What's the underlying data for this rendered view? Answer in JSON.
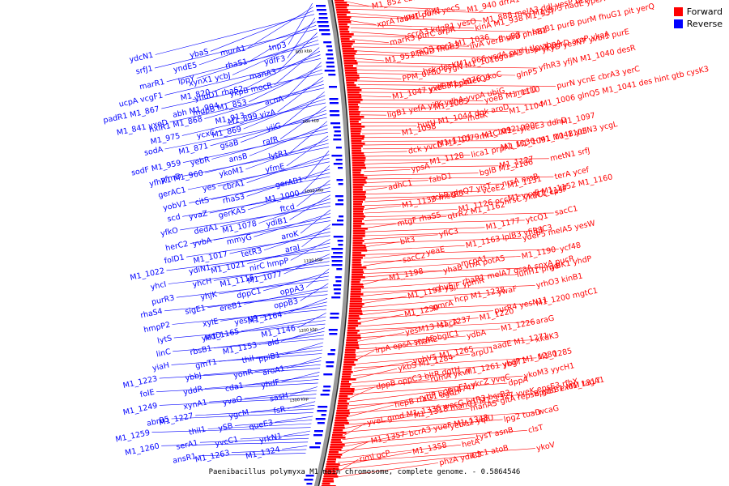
{
  "caption": "Paenibacillus polymyxa M1 main chromosome, complete genome. - 0.5864546",
  "legend": {
    "forward": {
      "label": "Forward",
      "color": "#ff0000"
    },
    "reverse": {
      "label": "Reverse",
      "color": "#0000ff"
    }
  },
  "colors": {
    "forward": "#ff0000",
    "reverse": "#0000ff",
    "backbone": "#888888"
  },
  "ruler_labels": [
    "800 kbp",
    "900 kbp",
    "1000 kbp",
    "1100 kbp",
    "1200 kbp",
    "1300 kbp"
  ],
  "forward_genes": [
    "M1_852 cbiQ yurK mutY yhbA",
    "M1_940 drrA1",
    "M1_873 nadE ypeA",
    "purL fliY1",
    "M1_888 melA3 ddl yesP bcp",
    "xprA fabH1 purK yecS",
    "kinA M1_938 M1_957",
    "topB1 purB purM fhuG1 pit yerQ",
    "scrA3 kdgR1 yesO",
    "fhuB3",
    "marR3 purC arpR",
    "ilvA verB sirB phnB1",
    "ykyD yesN7 yvbI1 purE",
    "araQ3 cor1 M1_1036",
    "guaA3 uspA3 purD araP ykaA",
    "M1_951 fhuD fhuB3",
    "M1_966 ysdA purH tlp abnA",
    "yfhR3 yfjN M1_1040 desR",
    "hsk desK",
    "glnP5",
    "PPM_0780 vygN M1_1018",
    "metQ3",
    "purN ycnE cbrA3 yerC",
    "yxeB3 ppe1",
    "metI1",
    "M1_1047 yvlF M1_1076 ykoC",
    "yoeB M1_1110",
    "M1_1006 glnQ5 M1_1041 des hint gtb cysK3",
    "M1_1085",
    "M1_1104",
    "ligB1 yefA yifK ydhA yvpA ubiG",
    "mdtK",
    "M1_1097",
    "hutU M1_1044 dgk aroD",
    "ylcoE3 ddhD",
    "M1_1098",
    "mrtC M1_1090",
    "M1_1048 ydiN3 ycgL",
    "M1_1101",
    "M1_1130",
    "dck yvcD M1_1079 M1_1092",
    "lica1 prpA1 M1_1091 M1_1103",
    "metN1 srfJ",
    "M1_1128",
    "M1_1127",
    "ypsA",
    "bglB M1_1106",
    "terA ycef",
    "fabD1",
    "nrsA nrsB",
    "adhC1",
    "vceE2 M1_1131",
    "M1_1147",
    "ycbR glnQ7 yisT",
    "nrsC ykuC1 cpsF",
    "M1_1133 metRS",
    "M1_1126 occM1 yxxF M1_1152 M1_1160",
    "sacC1",
    "qtrR2 M1_1162",
    "ytcQ1",
    "mtgF rhaS5",
    "M1_1177",
    "lplC3",
    "yfiC3",
    "ydeP5 melA5 yesW",
    "blt3",
    "M1_1163 lplB3 yfiB3",
    "ycf48",
    "yeaE",
    "M1_1190",
    "sacC2",
    "mcpA1",
    "galK1 yhdP",
    "yhaB vtrA potA5",
    "iunH1 phyB",
    "M1_1198",
    "rhaR1 melA7 gsaA spxA pucR",
    "yrhO3 kinB1",
    "chvE",
    "ywaF",
    "M1_1191 ygjF ypmR",
    "hcp M1_1238",
    "M1_1200 mgtC1",
    "pmrA",
    "purR4 yesN11",
    "M1_1230",
    "M1_1220",
    "araG",
    "sacA",
    "M1_1226",
    "yesM13 M1_1237",
    "ydbA",
    "xkdK3",
    "rhaR2",
    "aadE M1_1271",
    "lrpA epsA scrA5 bglC1",
    "arpU1",
    "M1_1285",
    "yobV5 M1_1265",
    "ybgT1",
    "ykbS M1_1284",
    "M1_1261 ykdP M1_1280",
    "ykoM3 yycH1",
    "rumA ykvT",
    "dppA",
    "dppB oppC3 bltR dgtH",
    "yvqE1 ykcZ yvqC",
    "epsE1 exoM tagA1",
    "ytiP bCE_4747",
    "gltA repsB gtaB1 M1_1317",
    "hepB rfaG1 ugdH",
    "manA5",
    "wcaG",
    "M1_1318 manC1 M1_1327 yveK epsE3 rfbX",
    "lpg2 tuaD",
    "yveL gmd M1_1336 wecG lytR3 bcrB3",
    "yebA2 yqfU",
    "clsT",
    "bcrA3 yueF M1_1348",
    "tysT asnB",
    "M1_1357",
    "hetA",
    "ykoV",
    "M1_1358",
    "adc1 atoB",
    "riml gcP",
    "phzA ydiC3"
  ],
  "reverse_genes": [
    "tnp3",
    "murA1",
    "ybaS",
    "ydcN1",
    "ydfF3",
    "rhaS1",
    "yndE5",
    "srfJ1",
    "manA3",
    "xynX1 ycbJ",
    "lppY",
    "marR1",
    "ykpB mocR",
    "yndD1 rhaS2",
    "M1_820",
    "ucpA vcgF1",
    "acnA",
    "mdpB M1_853",
    "abh M1_904",
    "padR1 M1_867",
    "M1_899 yizA",
    "M1_913",
    "hxlR1 M1_868",
    "M1_841 yxeD",
    "yiiG",
    "M1_869",
    "ycxC",
    "M1_975",
    "rafR",
    "gsaB",
    "M1_871",
    "sodA",
    "lytR1",
    "ansB",
    "yebR",
    "sodF M1_959",
    "yfmE",
    "ykoM1",
    "yfhR1 M1_960",
    "yfmD",
    "gerAB1",
    "cbrA1",
    "yes",
    "gerAC1",
    "M1_1000",
    "rhaS3",
    "citS",
    "yobV1",
    "ftcd",
    "gerKA5",
    "yvaZ",
    "scd",
    "ydiB1",
    "M1_1078",
    "dedA1",
    "yfkO",
    "aroK",
    "mmyG",
    "yvbA",
    "herC2",
    "araJ",
    "tetR3",
    "M1_1017",
    "folD1",
    "nirC hmpP",
    "M1_1021",
    "ydiN1",
    "M1_1022",
    "M1_1077",
    "M1_1116",
    "yhcH",
    "yhcI",
    "oppA3",
    "dppC1",
    "yhjK",
    "purR3",
    "oppB3",
    "ereB1",
    "sigE1",
    "rhaS4",
    "M1_1164",
    "yesN9",
    "xylE",
    "hmpP2",
    "M1_1146",
    "M1_1165",
    "yedD",
    "lytS",
    "ald",
    "M1_1153",
    "rbsB1",
    "linC",
    "ppiB1",
    "thiI",
    "gmT1",
    "yiaH",
    "aroA1",
    "yonR",
    "ybbJ",
    "M1_1223",
    "yhdF",
    "cda1",
    "yddR",
    "folE",
    "sasH",
    "yvaO",
    "xynA1",
    "M1_1249",
    "fsR",
    "ygcM",
    "M1_1227",
    "abrB5",
    "queE3",
    "ySB",
    "thiI1",
    "M1_1259",
    "yrkN1",
    "yvcC1",
    "serA1",
    "M1_1260",
    "M1_1324",
    "M1_1263",
    "ansR1"
  ]
}
